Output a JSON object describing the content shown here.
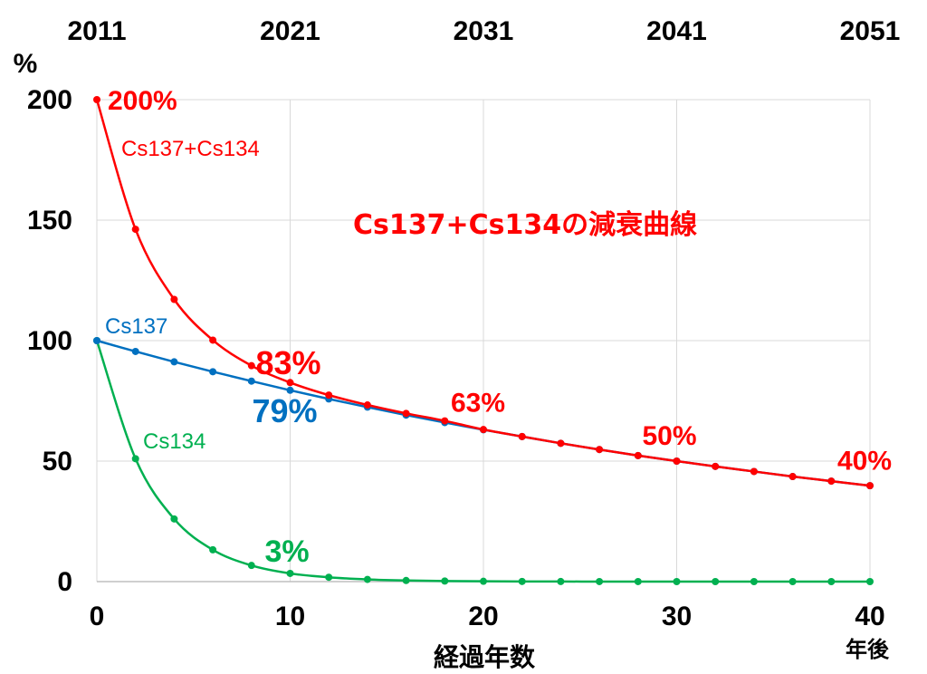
{
  "chart_data": {
    "type": "line",
    "title": "Cs137+Cs134の減衰曲線",
    "xlabel": "経過年数",
    "xunit": "年後",
    "yunit": "%",
    "xlim": [
      0,
      40
    ],
    "ylim": [
      0,
      200
    ],
    "x_ticks": [
      "0",
      "10",
      "20",
      "30",
      "40"
    ],
    "y_ticks": [
      "0",
      "50",
      "100",
      "150",
      "200"
    ],
    "top_axis_ticks": [
      "2011",
      "2021",
      "2031",
      "2041",
      "2051"
    ],
    "grid": true,
    "x": [
      0,
      2,
      4,
      6,
      8,
      10,
      12,
      14,
      16,
      18,
      20,
      22,
      24,
      26,
      28,
      30,
      32,
      34,
      36,
      38,
      40
    ],
    "series": [
      {
        "name": "Cs137+Cs134",
        "color": "#ff0000",
        "values": [
          200,
          146.2,
          117.1,
          100.2,
          89.6,
          82.6,
          77.4,
          73.3,
          69.8,
          66.7,
          63.1,
          60.2,
          57.4,
          54.8,
          52.3,
          50.0,
          47.8,
          45.7,
          43.6,
          41.7,
          39.8
        ]
      },
      {
        "name": "Cs137",
        "color": "#0070c0",
        "values": [
          100,
          95.5,
          91.2,
          87.1,
          83.2,
          79.4,
          75.8,
          72.4,
          69.1,
          66.0,
          63.0,
          60.2,
          57.4,
          54.8,
          52.3,
          50.0,
          47.8,
          45.7,
          43.6,
          41.7,
          39.8
        ]
      },
      {
        "name": "Cs134",
        "color": "#00b050",
        "values": [
          100,
          51,
          26,
          13.2,
          6.7,
          3.4,
          1.8,
          0.9,
          0.45,
          0.23,
          0.12,
          0.06,
          0.03,
          0.015,
          0.008,
          0.004,
          0.002,
          0.001,
          0.0005,
          0.0003,
          0.0001
        ]
      }
    ],
    "annotations": [
      {
        "text": "200%",
        "x": 0,
        "y": 200,
        "color": "#ff0000"
      },
      {
        "text": "83%",
        "x": 10,
        "y": 83,
        "color": "#ff0000"
      },
      {
        "text": "79%",
        "x": 10,
        "y": 79,
        "color": "#0070c0"
      },
      {
        "text": "3%",
        "x": 10,
        "y": 3,
        "color": "#00b050"
      },
      {
        "text": "63%",
        "x": 20,
        "y": 63,
        "color": "#ff0000"
      },
      {
        "text": "50%",
        "x": 30,
        "y": 50,
        "color": "#ff0000"
      },
      {
        "text": "40%",
        "x": 40,
        "y": 40,
        "color": "#ff0000"
      }
    ]
  }
}
